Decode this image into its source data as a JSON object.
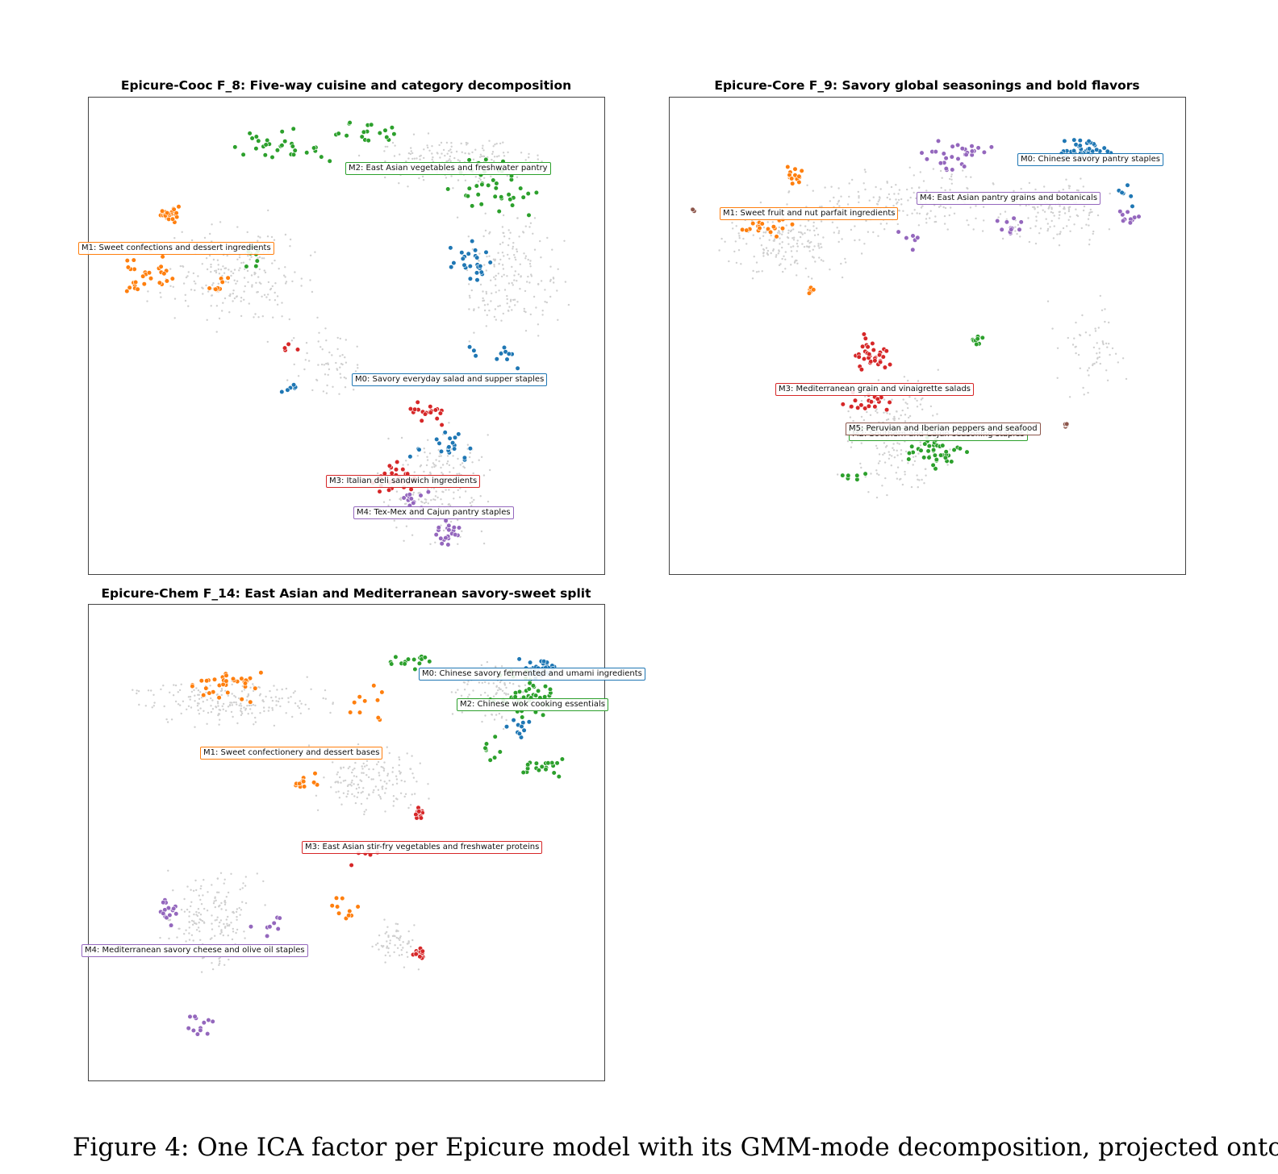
{
  "colors": {
    "M0": "#1f77b4",
    "M1": "#ff7f0e",
    "M2": "#2ca02c",
    "M3": "#d62728",
    "M4": "#9467bd",
    "M5": "#8c564b",
    "background": "#cfcfcf"
  },
  "panels": [
    {
      "title": "Epicure-Cooc  F_8: Five-way cuisine and category decomposition",
      "labels": [
        {
          "mode": "M2",
          "text": "M2: East Asian vegetables and freshwater pantry"
        },
        {
          "mode": "M1",
          "text": "M1: Sweet confections and dessert ingredients"
        },
        {
          "mode": "M0",
          "text": "M0: Savory everyday salad and supper staples"
        },
        {
          "mode": "M3",
          "text": "M3: Italian deli sandwich ingredients"
        },
        {
          "mode": "M4",
          "text": "M4: Tex-Mex and Cajun pantry staples"
        }
      ]
    },
    {
      "title": "Epicure-Core  F_9: Savory global seasonings and bold flavors",
      "labels": [
        {
          "mode": "M0",
          "text": "M0: Chinese savory pantry staples"
        },
        {
          "mode": "M4",
          "text": "M4: East Asian pantry grains and botanicals"
        },
        {
          "mode": "M1",
          "text": "M1: Sweet fruit and nut parfait ingredients"
        },
        {
          "mode": "M3",
          "text": "M3: Mediterranean grain and vinaigrette salads"
        },
        {
          "mode": "M2",
          "text": "M2: Southern and Cajun seasoning staples"
        },
        {
          "mode": "M5",
          "text": "M5: Peruvian and Iberian peppers and seafood"
        }
      ]
    },
    {
      "title": "Epicure-Chem  F_14: East Asian and Mediterranean savory-sweet split",
      "labels": [
        {
          "mode": "M0",
          "text": "M0: Chinese savory fermented and umami ingredients"
        },
        {
          "mode": "M2",
          "text": "M2: Chinese wok cooking essentials"
        },
        {
          "mode": "M1",
          "text": "M1: Sweet confectionery and dessert bases"
        },
        {
          "mode": "M3",
          "text": "M3: East Asian stir-fry vegetables and freshwater proteins"
        },
        {
          "mode": "M4",
          "text": "M4: Mediterranean savory cheese and olive oil staples"
        }
      ]
    }
  ],
  "caption": "Figure 4: One ICA factor per Epicure model with its GMM-mode decomposition, projected onto"
}
